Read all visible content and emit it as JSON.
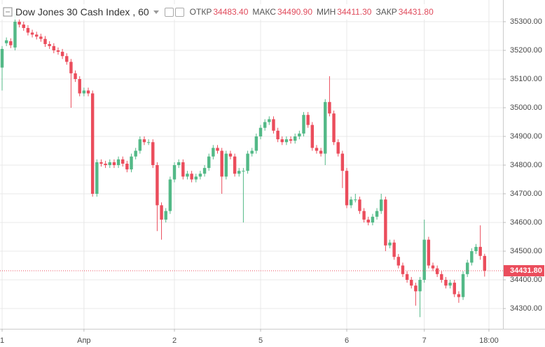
{
  "chart_data": {
    "type": "candlestick",
    "title": "Dow Jones 30 Cash Index , 60",
    "ohlc_legend": [
      {
        "label": "ОТКР",
        "value": "34483.40"
      },
      {
        "label": "МАКС",
        "value": "34490.90"
      },
      {
        "label": "МИН",
        "value": "34411.30"
      },
      {
        "label": "ЗАКР",
        "value": "34431.80"
      }
    ],
    "up_color": "#53b987",
    "down_color": "#eb4d5c",
    "grid": true,
    "open": [
      35140,
      35225,
      35232,
      35210,
      35300,
      35290,
      35278,
      35262,
      35255,
      35248,
      35240,
      35222,
      35215,
      35200,
      35195,
      35180,
      35160,
      35120,
      35100,
      35050,
      35060,
      35050,
      34700,
      34810,
      34805,
      34800,
      34810,
      34800,
      34820,
      34805,
      34785,
      34830,
      34850,
      34890,
      34880,
      34880,
      34800,
      34660,
      34610,
      34640,
      34750,
      34800,
      34810,
      34760,
      34770,
      34750,
      34760,
      34770,
      34790,
      34830,
      34860,
      34850,
      34760,
      34840,
      34830,
      34770,
      34780,
      34780,
      34840,
      34850,
      34900,
      34930,
      34950,
      34960,
      34920,
      34890,
      34880,
      34890,
      34885,
      34900,
      34910,
      34975,
      34940,
      34860,
      34850,
      34840,
      35020,
      34980,
      34880,
      34840,
      34780,
      34660,
      34680,
      34680,
      34640,
      34610,
      34600,
      34620,
      34640,
      34680,
      34520,
      34530,
      34480,
      34450,
      34420,
      34400,
      34380,
      34360,
      34400,
      34540,
      34450,
      34440,
      34420,
      34400,
      34380,
      34390,
      34350,
      34340,
      34420,
      34460,
      34500,
      34515,
      34483.4
    ],
    "high": [
      35215,
      35245,
      35242,
      35330,
      35310,
      35300,
      35288,
      35272,
      35265,
      35258,
      35250,
      35232,
      35225,
      35210,
      35205,
      35190,
      35170,
      35130,
      35110,
      35070,
      35070,
      35060,
      34820,
      34820,
      34815,
      34820,
      34820,
      34830,
      34830,
      34815,
      34840,
      34860,
      34900,
      34900,
      34890,
      34890,
      34810,
      34670,
      34650,
      34760,
      34810,
      34820,
      34820,
      34780,
      34780,
      34770,
      34780,
      34800,
      34840,
      34870,
      34870,
      34860,
      34850,
      34850,
      34840,
      34790,
      34790,
      34850,
      34860,
      34910,
      34940,
      34960,
      34970,
      34970,
      34930,
      34900,
      34900,
      34900,
      34910,
      34920,
      34985,
      34985,
      34950,
      34870,
      34860,
      35030,
      35110,
      34990,
      34890,
      34850,
      34790,
      34690,
      34700,
      34690,
      34650,
      34620,
      34630,
      34650,
      34700,
      34690,
      34540,
      34540,
      34490,
      34460,
      34430,
      34410,
      34390,
      34410,
      34610,
      34550,
      34460,
      34450,
      34430,
      34410,
      34400,
      34400,
      34360,
      34430,
      34470,
      34510,
      34525,
      34590,
      34490.9
    ],
    "low": [
      35060,
      35215,
      35208,
      35200,
      35280,
      35268,
      35252,
      35245,
      35238,
      35230,
      35212,
      35205,
      35190,
      35185,
      35170,
      35150,
      35000,
      35090,
      35040,
      35040,
      35040,
      34690,
      34690,
      34795,
      34790,
      34790,
      34790,
      34790,
      34795,
      34775,
      34775,
      34820,
      34840,
      34870,
      34870,
      34790,
      34570,
      34540,
      34600,
      34630,
      34740,
      34790,
      34750,
      34750,
      34740,
      34740,
      34750,
      34760,
      34780,
      34820,
      34840,
      34700,
      34750,
      34820,
      34760,
      34760,
      34600,
      34770,
      34830,
      34840,
      34890,
      34920,
      34940,
      34910,
      34880,
      34870,
      34870,
      34875,
      34875,
      34890,
      34900,
      34930,
      34850,
      34840,
      34830,
      34800,
      34970,
      34870,
      34830,
      34720,
      34650,
      34650,
      34670,
      34630,
      34600,
      34590,
      34590,
      34610,
      34630,
      34500,
      34510,
      34470,
      34440,
      34410,
      34390,
      34370,
      34310,
      34270,
      34390,
      34440,
      34430,
      34410,
      34390,
      34370,
      34370,
      34340,
      34320,
      34330,
      34410,
      34450,
      34490,
      34470,
      34411.3
    ],
    "close": [
      35205,
      35235,
      35218,
      35300,
      35290,
      35278,
      35262,
      35255,
      35248,
      35240,
      35222,
      35215,
      35200,
      35195,
      35180,
      35160,
      35120,
      35100,
      35050,
      35060,
      35050,
      34700,
      34810,
      34805,
      34800,
      34810,
      34800,
      34820,
      34805,
      34785,
      34830,
      34850,
      34890,
      34880,
      34880,
      34800,
      34660,
      34610,
      34640,
      34750,
      34800,
      34810,
      34760,
      34770,
      34750,
      34760,
      34770,
      34790,
      34830,
      34860,
      34850,
      34760,
      34840,
      34830,
      34770,
      34780,
      34780,
      34840,
      34850,
      34900,
      34930,
      34950,
      34960,
      34920,
      34890,
      34880,
      34890,
      34885,
      34900,
      34910,
      34975,
      34940,
      34860,
      34850,
      34840,
      35020,
      34980,
      34880,
      34840,
      34780,
      34660,
      34680,
      34680,
      34640,
      34610,
      34600,
      34620,
      34640,
      34680,
      34520,
      34530,
      34480,
      34450,
      34420,
      34400,
      34380,
      34360,
      34400,
      34540,
      34450,
      34440,
      34420,
      34400,
      34380,
      34390,
      34350,
      34340,
      34420,
      34460,
      34500,
      34515,
      34483.4,
      34431.8
    ],
    "xlim": [
      -0.49,
      116.26
    ],
    "xticks": [
      {
        "value": 0,
        "label": "1"
      },
      {
        "value": 19,
        "label": "Апр"
      },
      {
        "value": 40,
        "label": "2"
      },
      {
        "value": 60,
        "label": "5"
      },
      {
        "value": 80,
        "label": "6"
      },
      {
        "value": 98,
        "label": "7"
      },
      {
        "value": 113,
        "label": "18:00"
      }
    ],
    "ylim": [
      34229.3,
      35375.6
    ],
    "yticks": [
      {
        "value": 34300,
        "label": "34300.00"
      },
      {
        "value": 34400,
        "label": "34400.00"
      },
      {
        "value": 34500,
        "label": "34500.00"
      },
      {
        "value": 34600,
        "label": "34600.00"
      },
      {
        "value": 34700,
        "label": "34700.00"
      },
      {
        "value": 34800,
        "label": "34800.00"
      },
      {
        "value": 34900,
        "label": "34900.00"
      },
      {
        "value": 35000,
        "label": "35000.00"
      },
      {
        "value": 35100,
        "label": "35100.00"
      },
      {
        "value": 35200,
        "label": "35200.00"
      },
      {
        "value": 35300,
        "label": "35300.00"
      }
    ],
    "last_price": {
      "value": 34431.8,
      "label": "34431.80"
    }
  }
}
